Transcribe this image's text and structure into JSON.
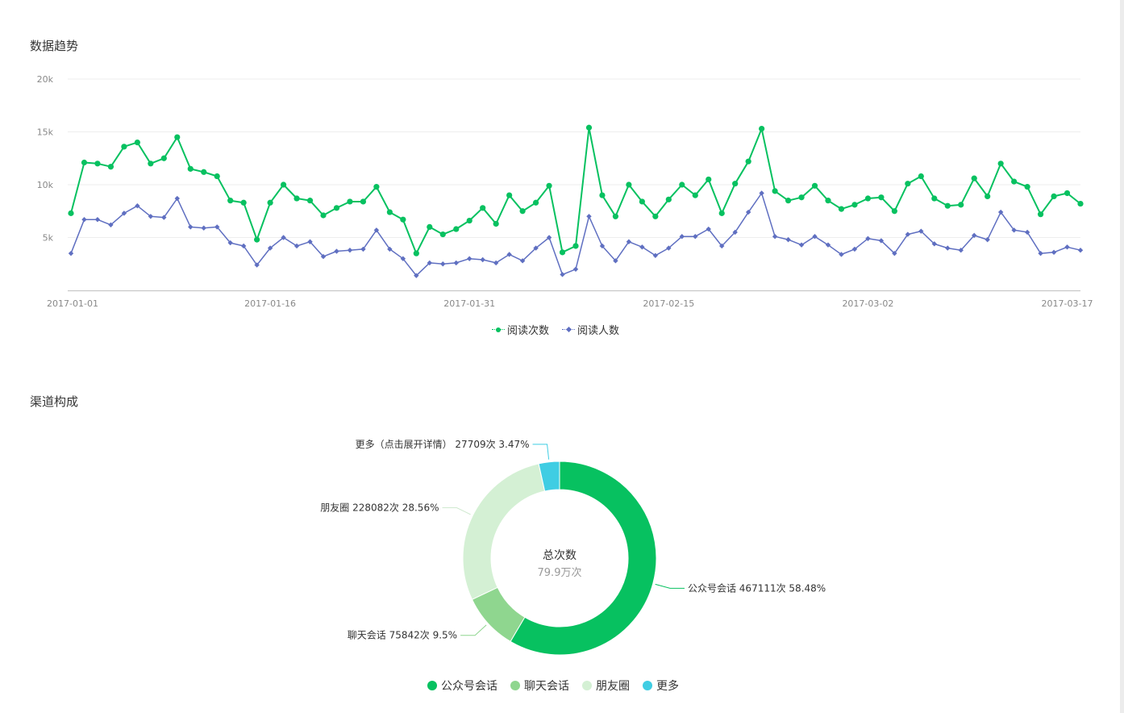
{
  "sections": {
    "trend_title": "数据趋势",
    "channel_title": "渠道构成"
  },
  "chart_data": [
    {
      "type": "line",
      "title": "数据趋势",
      "x_tick_labels": [
        "2017-01-01",
        "2017-01-16",
        "2017-01-31",
        "2017-02-15",
        "2017-03-02",
        "2017-03-17"
      ],
      "y_tick_labels": [
        "5k",
        "10k",
        "15k",
        "20k"
      ],
      "ylim": [
        0,
        20000
      ],
      "grid": true,
      "legend_position": "bottom",
      "series": [
        {
          "name": "阅读次数",
          "color": "#07c160",
          "marker": "circle",
          "values": [
            7300,
            12100,
            12000,
            11700,
            13600,
            14000,
            12000,
            12500,
            14500,
            11500,
            11200,
            10800,
            8500,
            8300,
            4800,
            8300,
            10000,
            8700,
            8500,
            7100,
            7800,
            8400,
            8400,
            9800,
            7400,
            6700,
            3500,
            6000,
            5300,
            5800,
            6600,
            7800,
            6300,
            9000,
            7500,
            8300,
            9900,
            3600,
            4200,
            15400,
            9000,
            7000,
            10000,
            8400,
            7000,
            8600,
            10000,
            9000,
            10500,
            7300,
            10100,
            12200,
            15300,
            9400,
            8500,
            8800,
            9900,
            8500,
            7700,
            8100,
            8700,
            8800,
            7500,
            10100,
            10800,
            8700,
            8000,
            8100,
            10600,
            8900,
            12000,
            10300,
            9800,
            7200,
            8900,
            9200,
            8200
          ],
          "start_date": "2017-01-01"
        },
        {
          "name": "阅读人数",
          "color": "#5f6fc1",
          "marker": "diamond",
          "values": [
            3500,
            6700,
            6700,
            6200,
            7300,
            8000,
            7000,
            6900,
            8700,
            6000,
            5900,
            6000,
            4500,
            4200,
            2400,
            4000,
            5000,
            4200,
            4600,
            3200,
            3700,
            3800,
            3900,
            5700,
            3900,
            3000,
            1400,
            2600,
            2500,
            2600,
            3000,
            2900,
            2600,
            3400,
            2800,
            4000,
            5000,
            1500,
            2000,
            7000,
            4200,
            2800,
            4600,
            4100,
            3300,
            4000,
            5100,
            5100,
            5800,
            4200,
            5500,
            7400,
            9200,
            5100,
            4800,
            4300,
            5100,
            4300,
            3400,
            3900,
            4900,
            4700,
            3500,
            5300,
            5600,
            4400,
            4000,
            3800,
            5200,
            4800,
            7400,
            5700,
            5500,
            3500,
            3600,
            4100,
            3800
          ],
          "start_date": "2017-01-01"
        }
      ]
    },
    {
      "type": "pie",
      "center_title": "总次数",
      "center_value": "79.9万次",
      "legend_position": "bottom",
      "slices": [
        {
          "name": "公众号会话",
          "value": 467111,
          "percent": 58.48,
          "label": "公众号会话 467111次 58.48%",
          "color": "#07c160"
        },
        {
          "name": "聊天会话",
          "value": 75842,
          "percent": 9.5,
          "label": "聊天会话 75842次 9.5%",
          "color": "#8fd68f"
        },
        {
          "name": "朋友圈",
          "value": 228082,
          "percent": 28.56,
          "label": "朋友圈 228082次 28.56%",
          "color": "#d4f0d4"
        },
        {
          "name": "更多",
          "value": 27709,
          "percent": 3.47,
          "label": "更多（点击展开详情） 27709次 3.47%",
          "color": "#3fcde3"
        }
      ]
    }
  ]
}
